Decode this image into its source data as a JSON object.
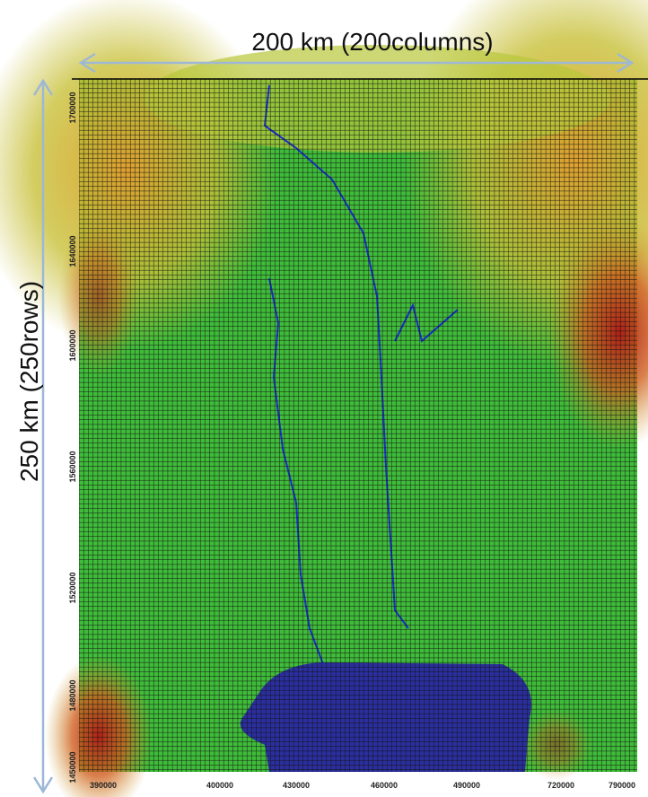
{
  "top_label": "200 km (200columns)",
  "side_label": "250 km   (250rows)",
  "y_axis_labels": [
    "1700000",
    "1640000",
    "1600000",
    "1560000",
    "1520000",
    "1480000",
    "1450000"
  ],
  "x_axis_labels": [
    "390000",
    "400000",
    "430000",
    "460000",
    "490000",
    "720000",
    "790000"
  ]
}
